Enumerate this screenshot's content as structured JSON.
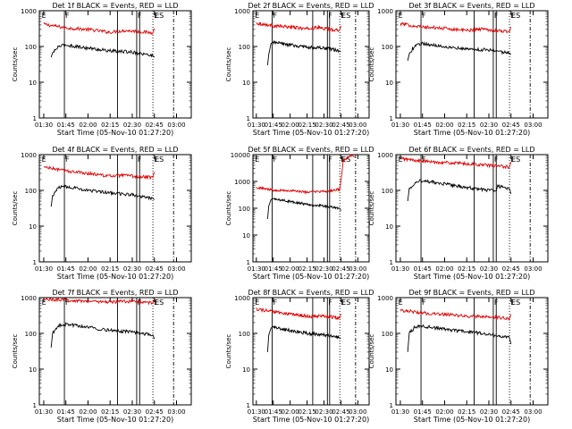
{
  "colors": {
    "events": "#000000",
    "lld": "#e00000",
    "axis": "#000000",
    "background": "#ffffff"
  },
  "chart_data": [
    {
      "type": "line",
      "title": "Det 1f BLACK = Events, RED = LLD",
      "xlabel": "Start Time (05-Nov-10 01:27:20)",
      "ylabel": "Counts/sec",
      "xtick_labels": [
        "01:30",
        "01:45",
        "02:00",
        "02:15",
        "02:30",
        "02:45",
        "03:00"
      ],
      "ytick_labels": [
        "1",
        "10",
        "100",
        "1000"
      ],
      "yscale": "log",
      "ylim": [
        1,
        1000
      ],
      "markers": [
        "E",
        "F",
        "F",
        "E",
        "ES"
      ],
      "series": [
        {
          "color": "red",
          "x": [
            "01:30",
            "01:45",
            "02:00",
            "02:15",
            "02:25",
            "02:35",
            "02:44",
            "02:45"
          ],
          "y": [
            420,
            330,
            300,
            250,
            280,
            260,
            240,
            320
          ]
        },
        {
          "color": "black",
          "x": [
            "01:35",
            "01:36",
            "01:40",
            "01:45",
            "02:00",
            "02:15",
            "02:30",
            "02:44",
            "02:45"
          ],
          "y": [
            50,
            65,
            100,
            110,
            90,
            75,
            70,
            55,
            50
          ]
        }
      ]
    },
    {
      "type": "line",
      "title": "Det 2f BLACK = Events, RED = LLD",
      "xlabel": "Start Time (05-Nov-10 01:27:20)",
      "ylabel": "Counts/sec",
      "xtick_labels": [
        "01:30",
        "01:45",
        "02:00",
        "02:15",
        "02:30",
        "02:45",
        "03:00"
      ],
      "ytick_labels": [
        "1",
        "10",
        "100",
        "1000"
      ],
      "yscale": "log",
      "ylim": [
        1,
        1000
      ],
      "markers": [
        "E",
        "F",
        "F",
        "E",
        "ES"
      ],
      "series": [
        {
          "color": "red",
          "x": [
            "01:30",
            "01:45",
            "02:00",
            "02:15",
            "02:25",
            "02:35",
            "02:44",
            "02:45"
          ],
          "y": [
            450,
            380,
            350,
            310,
            340,
            300,
            290,
            380
          ]
        },
        {
          "color": "black",
          "x": [
            "01:40",
            "01:41",
            "01:43",
            "01:45",
            "02:00",
            "02:15",
            "02:30",
            "02:44",
            "02:45"
          ],
          "y": [
            30,
            60,
            120,
            130,
            110,
            95,
            90,
            75,
            70
          ]
        }
      ]
    },
    {
      "type": "line",
      "title": "Det 3f BLACK = Events, RED = LLD",
      "xlabel": "Start Time (05-Nov-10 01:27:20)",
      "ylabel": "Counts/sec",
      "xtick_labels": [
        "01:30",
        "01:45",
        "02:00",
        "02:15",
        "02:30",
        "02:45",
        "03:00"
      ],
      "ytick_labels": [
        "1",
        "10",
        "100",
        "1000"
      ],
      "yscale": "log",
      "ylim": [
        1,
        1000
      ],
      "markers": [
        "E",
        "F",
        "F",
        "E",
        "ES"
      ],
      "series": [
        {
          "color": "red",
          "x": [
            "01:30",
            "01:45",
            "02:00",
            "02:15",
            "02:25",
            "02:35",
            "02:44",
            "02:45"
          ],
          "y": [
            430,
            350,
            320,
            280,
            310,
            280,
            260,
            350
          ]
        },
        {
          "color": "black",
          "x": [
            "01:35",
            "01:36",
            "01:40",
            "01:45",
            "02:00",
            "02:15",
            "02:30",
            "02:44",
            "02:45"
          ],
          "y": [
            40,
            60,
            110,
            120,
            100,
            85,
            80,
            65,
            60
          ]
        }
      ]
    },
    {
      "type": "line",
      "title": "Det 4f BLACK = Events, RED = LLD",
      "xlabel": "Start Time (05-Nov-10 01:27:20)",
      "ylabel": "Counts/sec",
      "xtick_labels": [
        "01:30",
        "01:45",
        "02:00",
        "02:15",
        "02:30",
        "02:45",
        "03:00"
      ],
      "ytick_labels": [
        "1",
        "10",
        "100",
        "1000"
      ],
      "yscale": "log",
      "ylim": [
        1,
        1000
      ],
      "markers": [
        "E",
        "F",
        "F",
        "E",
        "ES"
      ],
      "series": [
        {
          "color": "red",
          "x": [
            "01:30",
            "01:45",
            "02:00",
            "02:15",
            "02:25",
            "02:35",
            "02:44",
            "02:45"
          ],
          "y": [
            450,
            350,
            300,
            250,
            260,
            240,
            230,
            330
          ]
        },
        {
          "color": "black",
          "x": [
            "01:35",
            "01:36",
            "01:40",
            "01:45",
            "02:00",
            "02:15",
            "02:30",
            "02:44",
            "02:45"
          ],
          "y": [
            35,
            70,
            120,
            130,
            100,
            85,
            75,
            60,
            55
          ]
        }
      ]
    },
    {
      "type": "line",
      "title": "Det 5f BLACK = Events, RED = LLD",
      "xlabel": "Start Time (05-Nov-10 01:27:20)",
      "ylabel": "Counts/sec",
      "xtick_labels": [
        "01:30",
        "01:45",
        "02:00",
        "02:15",
        "02:30",
        "02:45",
        "03:00"
      ],
      "ytick_labels": [
        "1",
        "10",
        "100",
        "1000"
      ],
      "yscale": "log",
      "ylim": [
        1,
        10000
      ],
      "markers": [
        "E",
        "F",
        "F",
        "E",
        "ES"
      ],
      "series": [
        {
          "color": "red",
          "x": [
            "01:30",
            "01:45",
            "02:00",
            "02:15",
            "02:30",
            "02:44",
            "02:45",
            "02:47",
            "02:52",
            "02:55",
            "02:57"
          ],
          "y": [
            600,
            480,
            450,
            400,
            420,
            500,
            1000,
            6000,
            8000,
            9500,
            8000
          ]
        },
        {
          "color": "black",
          "x": [
            "01:40",
            "01:41",
            "01:43",
            "01:45",
            "02:00",
            "02:15",
            "02:30",
            "02:44",
            "02:45"
          ],
          "y": [
            40,
            120,
            210,
            220,
            180,
            140,
            120,
            100,
            80
          ]
        }
      ]
    },
    {
      "type": "line",
      "title": "Det 6f BLACK = Events, RED = LLD",
      "xlabel": "Start Time (05-Nov-10 01:27:20)",
      "ylabel": "Counts/sec",
      "xtick_labels": [
        "01:30",
        "01:45",
        "02:00",
        "02:15",
        "02:30",
        "02:45",
        "03:00"
      ],
      "ytick_labels": [
        "1",
        "10",
        "100",
        "1000"
      ],
      "yscale": "log",
      "ylim": [
        1,
        1000
      ],
      "markers": [
        "E",
        "F",
        "F",
        "E",
        "ES"
      ],
      "series": [
        {
          "color": "red",
          "x": [
            "01:30",
            "01:45",
            "02:00",
            "02:15",
            "02:30",
            "02:44",
            "02:45"
          ],
          "y": [
            780,
            650,
            600,
            550,
            500,
            450,
            620
          ]
        },
        {
          "color": "black",
          "x": [
            "01:35",
            "01:36",
            "01:40",
            "01:45",
            "02:00",
            "02:15",
            "02:30",
            "02:35",
            "02:36",
            "02:44",
            "02:45"
          ],
          "y": [
            50,
            110,
            170,
            190,
            150,
            120,
            100,
            95,
            130,
            110,
            80
          ]
        }
      ]
    },
    {
      "type": "line",
      "title": "Det 7f BLACK = Events, RED = LLD",
      "xlabel": "Start Time (05-Nov-10 01:27:20)",
      "ylabel": "Counts/sec",
      "xtick_labels": [
        "01:30",
        "01:45",
        "02:00",
        "02:15",
        "02:30",
        "02:45",
        "03:00"
      ],
      "ytick_labels": [
        "1",
        "10",
        "100",
        "1000"
      ],
      "yscale": "log",
      "ylim": [
        1,
        1000
      ],
      "markers": [
        "E",
        "F",
        "F",
        "E",
        "ES"
      ],
      "series": [
        {
          "color": "red",
          "x": [
            "01:30",
            "01:45",
            "02:00",
            "02:15",
            "02:30",
            "02:44",
            "02:45"
          ],
          "y": [
            900,
            850,
            800,
            750,
            800,
            700,
            950
          ]
        },
        {
          "color": "black",
          "x": [
            "01:35",
            "01:36",
            "01:40",
            "01:45",
            "02:00",
            "02:15",
            "02:30",
            "02:44",
            "02:45"
          ],
          "y": [
            40,
            100,
            160,
            180,
            150,
            120,
            110,
            90,
            70
          ]
        }
      ]
    },
    {
      "type": "line",
      "title": "Det 8f BLACK = Events, RED = LLD",
      "xlabel": "Start Time (05-Nov-10 01:27:20)",
      "ylabel": "Counts/sec",
      "xtick_labels": [
        "01:30",
        "01:45",
        "02:00",
        "02:15",
        "02:30",
        "02:45",
        "03:00"
      ],
      "ytick_labels": [
        "1",
        "10",
        "100",
        "1000"
      ],
      "yscale": "log",
      "ylim": [
        1,
        1000
      ],
      "markers": [
        "E",
        "F",
        "F",
        "E",
        "ES"
      ],
      "series": [
        {
          "color": "red",
          "x": [
            "01:30",
            "01:45",
            "02:00",
            "02:15",
            "02:30",
            "02:44",
            "02:45"
          ],
          "y": [
            480,
            400,
            350,
            300,
            310,
            270,
            350
          ]
        },
        {
          "color": "black",
          "x": [
            "01:40",
            "01:41",
            "01:43",
            "01:45",
            "02:00",
            "02:15",
            "02:30",
            "02:44",
            "02:45"
          ],
          "y": [
            30,
            90,
            140,
            150,
            120,
            100,
            90,
            75,
            70
          ]
        }
      ]
    },
    {
      "type": "line",
      "title": "Det 9f BLACK = Events, RED = LLD",
      "xlabel": "Start Time (05-Nov-10 01:27:20)",
      "ylabel": "Counts/sec",
      "xtick_labels": [
        "01:30",
        "01:45",
        "02:00",
        "02:15",
        "02:30",
        "02:45",
        "03:00"
      ],
      "ytick_labels": [
        "1",
        "10",
        "100",
        "1000"
      ],
      "yscale": "log",
      "ylim": [
        1,
        1000
      ],
      "markers": [
        "E",
        "F",
        "F",
        "E",
        "ES"
      ],
      "series": [
        {
          "color": "red",
          "x": [
            "01:30",
            "01:45",
            "02:00",
            "02:15",
            "02:30",
            "02:44",
            "02:45"
          ],
          "y": [
            450,
            370,
            340,
            300,
            290,
            260,
            340
          ]
        },
        {
          "color": "black",
          "x": [
            "01:35",
            "01:36",
            "01:40",
            "01:45",
            "02:00",
            "02:15",
            "02:30",
            "02:44",
            "02:45"
          ],
          "y": [
            30,
            100,
            150,
            160,
            130,
            110,
            95,
            75,
            50
          ]
        }
      ]
    }
  ]
}
